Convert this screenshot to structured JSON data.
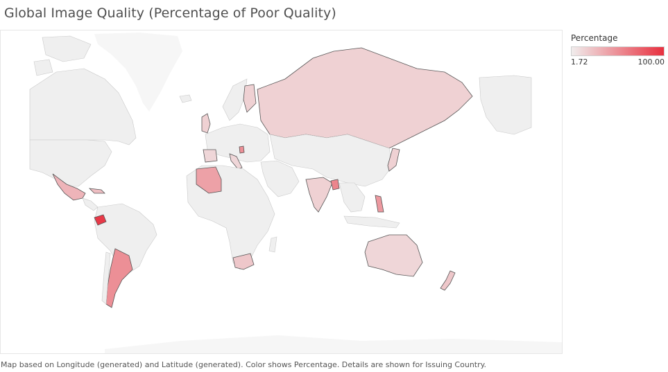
{
  "title": "Global Image Quality (Percentage of Poor Quality)",
  "legend": {
    "title": "Percentage",
    "min_label": "1.72",
    "max_label": "100.00",
    "color_low": "#f0eded",
    "color_high": "#e8303f"
  },
  "caption": "Map based on Longitude (generated) and Latitude (generated).  Color shows Percentage.  Details are shown for Issuing Country.",
  "colors": {
    "land_no_data": "#efefef",
    "land_faint": "#f6f6f6",
    "border": "#555555",
    "ocean": "#ffffff"
  },
  "map_data": {
    "measure": "Percentage",
    "scale": [
      1.72,
      100.0
    ],
    "highlighted_countries": [
      {
        "country": "Ecuador",
        "level": 0.95
      },
      {
        "country": "Argentina",
        "level": 0.5
      },
      {
        "country": "Algeria",
        "level": 0.4
      },
      {
        "country": "Bangladesh",
        "level": 0.55
      },
      {
        "country": "Philippines",
        "level": 0.45
      },
      {
        "country": "Mexico",
        "level": 0.3
      },
      {
        "country": "Russia",
        "level": 0.15
      },
      {
        "country": "India",
        "level": 0.15
      },
      {
        "country": "South Africa",
        "level": 0.2
      },
      {
        "country": "Australia",
        "level": 0.12
      },
      {
        "country": "New Zealand",
        "level": 0.2
      },
      {
        "country": "Japan",
        "level": 0.15
      },
      {
        "country": "Cuba",
        "level": 0.25
      },
      {
        "country": "Serbia",
        "level": 0.5
      },
      {
        "country": "Finland",
        "level": 0.15
      },
      {
        "country": "United Kingdom",
        "level": 0.15
      },
      {
        "country": "Spain",
        "level": 0.12
      },
      {
        "country": "Italy",
        "level": 0.12
      }
    ]
  }
}
